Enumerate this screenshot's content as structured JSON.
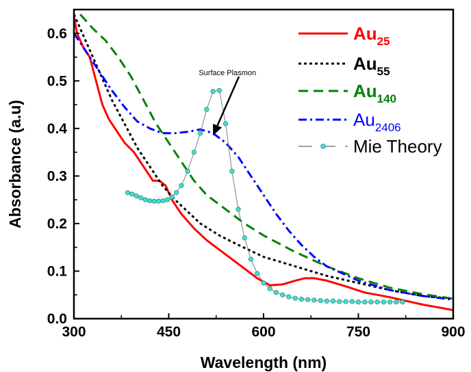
{
  "chart_data": {
    "type": "line",
    "xlabel": "Wavelength (nm)",
    "ylabel": "Absorbance (a.u)",
    "xlim": [
      300,
      900
    ],
    "ylim": [
      0.0,
      0.65
    ],
    "x_ticks": [
      300,
      450,
      600,
      750,
      900
    ],
    "y_ticks": [
      0.0,
      0.1,
      0.2,
      0.3,
      0.4,
      0.5,
      0.6
    ],
    "x_tick_labels": [
      "300",
      "450",
      "600",
      "750",
      "900"
    ],
    "y_tick_labels": [
      "0.0",
      "0.1",
      "0.2",
      "0.3",
      "0.4",
      "0.5",
      "0.6"
    ],
    "grid": false,
    "legend_position": "top-right",
    "annotation": {
      "text": "Surface Plasmon",
      "points_to": [
        520,
        0.385
      ],
      "text_at": [
        545,
        0.5
      ]
    },
    "series": [
      {
        "name": "Au",
        "name_subscript": "25",
        "color": "#ff0000",
        "style": "solid",
        "x": [
          300,
          305,
          315,
          325,
          335,
          345,
          355,
          365,
          380,
          395,
          410,
          425,
          435,
          445,
          455,
          470,
          490,
          510,
          530,
          550,
          570,
          590,
          610,
          630,
          650,
          665,
          680,
          700,
          730,
          760,
          800,
          850,
          900
        ],
        "y": [
          0.635,
          0.6,
          0.57,
          0.55,
          0.5,
          0.45,
          0.42,
          0.4,
          0.37,
          0.35,
          0.32,
          0.29,
          0.29,
          0.28,
          0.25,
          0.22,
          0.19,
          0.165,
          0.145,
          0.125,
          0.105,
          0.085,
          0.07,
          0.072,
          0.08,
          0.085,
          0.085,
          0.08,
          0.068,
          0.055,
          0.045,
          0.03,
          0.018
        ]
      },
      {
        "name": "Au",
        "name_subscript": "55",
        "color": "#000000",
        "style": "dotted",
        "x": [
          300,
          320,
          340,
          360,
          380,
          400,
          420,
          440,
          460,
          480,
          500,
          530,
          560,
          600,
          650,
          700,
          750,
          800,
          850,
          900
        ],
        "y": [
          0.64,
          0.58,
          0.52,
          0.46,
          0.41,
          0.36,
          0.32,
          0.28,
          0.25,
          0.225,
          0.2,
          0.175,
          0.155,
          0.13,
          0.11,
          0.09,
          0.075,
          0.06,
          0.048,
          0.042
        ]
      },
      {
        "name": "Au",
        "name_subscript": "140",
        "color": "#008000",
        "style": "dashed",
        "x": [
          310,
          330,
          350,
          370,
          390,
          410,
          430,
          450,
          470,
          490,
          510,
          540,
          570,
          600,
          650,
          700,
          750,
          800,
          850,
          900
        ],
        "y": [
          0.64,
          0.61,
          0.585,
          0.55,
          0.51,
          0.46,
          0.41,
          0.37,
          0.33,
          0.29,
          0.26,
          0.23,
          0.2,
          0.175,
          0.14,
          0.11,
          0.085,
          0.065,
          0.052,
          0.042
        ]
      },
      {
        "name": "Au",
        "name_subscript": "2406",
        "color": "#0000ff",
        "style": "dashdot",
        "x": [
          300,
          320,
          340,
          360,
          380,
          400,
          420,
          440,
          460,
          480,
          500,
          520,
          540,
          560,
          580,
          600,
          620,
          640,
          660,
          680,
          700,
          750,
          800,
          850,
          900
        ],
        "y": [
          0.6,
          0.56,
          0.52,
          0.48,
          0.445,
          0.415,
          0.4,
          0.39,
          0.39,
          0.393,
          0.398,
          0.39,
          0.37,
          0.34,
          0.3,
          0.26,
          0.22,
          0.185,
          0.155,
          0.13,
          0.11,
          0.08,
          0.06,
          0.048,
          0.04
        ]
      },
      {
        "name": "Mie Theory",
        "color": "#808080",
        "marker_color": "#40e0d0",
        "style": "solid-markers",
        "x": [
          385,
          392,
          399,
          406,
          413,
          420,
          427,
          434,
          441,
          448,
          455,
          462,
          470,
          480,
          490,
          500,
          510,
          520,
          530,
          540,
          550,
          560,
          570,
          580,
          590,
          600,
          610,
          620,
          630,
          640,
          650,
          660,
          670,
          680,
          690,
          700,
          710,
          720,
          730,
          740,
          750,
          760,
          770,
          780,
          790,
          800,
          810,
          820
        ],
        "y": [
          0.265,
          0.262,
          0.258,
          0.254,
          0.25,
          0.248,
          0.247,
          0.247,
          0.248,
          0.25,
          0.256,
          0.265,
          0.28,
          0.31,
          0.35,
          0.39,
          0.44,
          0.478,
          0.48,
          0.41,
          0.31,
          0.23,
          0.17,
          0.125,
          0.095,
          0.075,
          0.063,
          0.055,
          0.05,
          0.046,
          0.043,
          0.041,
          0.04,
          0.039,
          0.038,
          0.037,
          0.037,
          0.036,
          0.036,
          0.036,
          0.035,
          0.035,
          0.035,
          0.035,
          0.035,
          0.035,
          0.035,
          0.035
        ]
      }
    ]
  }
}
